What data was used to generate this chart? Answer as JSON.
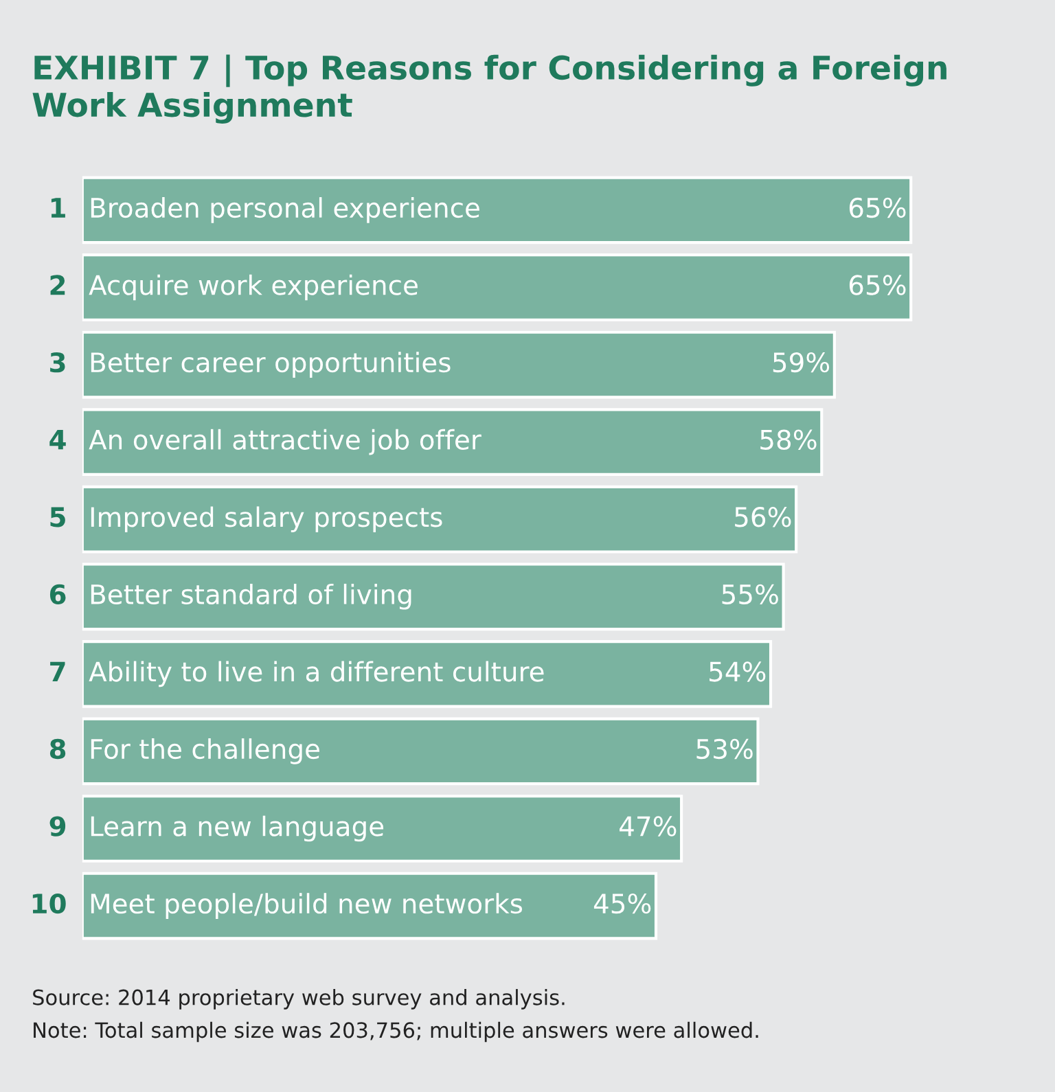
{
  "chart_data": {
    "type": "bar",
    "orientation": "horizontal",
    "title": "EXHIBIT 7 | Top Reasons for Considering a Foreign Work Assignment",
    "categories": [
      "Broaden personal experience",
      "Acquire work experience",
      "Better career opportunities",
      "An overall attractive job offer",
      "Improved salary prospects",
      "Better standard of living",
      "Ability to live in a different culture",
      "For the challenge",
      "Learn a new language",
      "Meet people/build new networks"
    ],
    "values": [
      65,
      65,
      59,
      58,
      56,
      55,
      54,
      53,
      47,
      45
    ],
    "value_labels": [
      "65%",
      "65%",
      "59%",
      "58%",
      "56%",
      "55%",
      "54%",
      "53%",
      "47%",
      "45%"
    ],
    "color": "#7ab3a0",
    "tick_labels": false,
    "annotations": [
      "1",
      "2",
      "3",
      "4",
      "5",
      "6",
      "7",
      "8",
      "9",
      "10",
      "Source: 2014 proprietary web survey and analysis.",
      "Note: Total sample size was 203,756; multiple answers were allowed."
    ]
  }
}
